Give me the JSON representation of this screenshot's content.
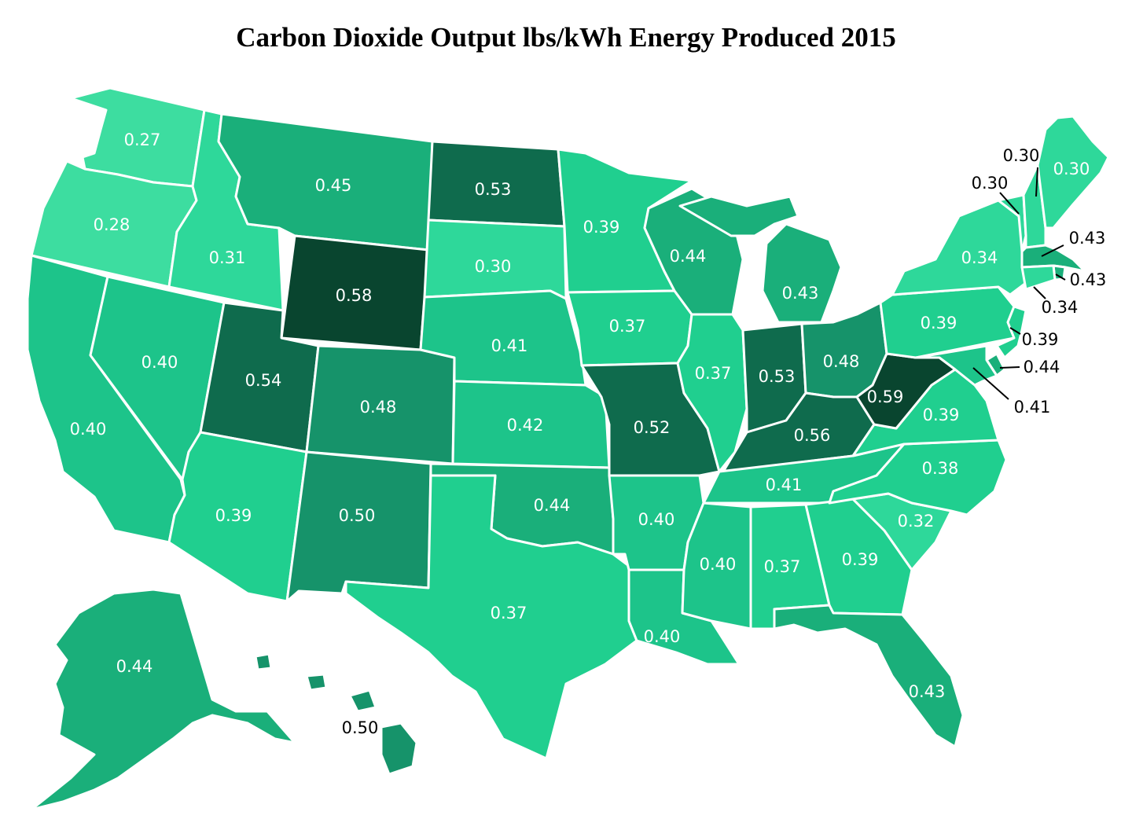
{
  "title": "Carbon Dioxide Output lbs/kWh Energy Produced 2015",
  "colors": {
    "shade_027": "#3ddda0",
    "shade_031": "#2ed89a",
    "shade_037": "#20cf8f",
    "shade_040": "#1dc48a",
    "shade_043": "#1aaf7a",
    "shade_048": "#16936a",
    "shade_053": "#0f6b4d",
    "shade_058": "#09452f",
    "label_light": "#ffffff",
    "label_outside": "#000000",
    "border": "#ffffff"
  },
  "states": [
    {
      "id": "WA",
      "value": "0.27"
    },
    {
      "id": "OR",
      "value": "0.28"
    },
    {
      "id": "CA",
      "value": "0.40"
    },
    {
      "id": "ID",
      "value": "0.31"
    },
    {
      "id": "NV",
      "value": "0.40"
    },
    {
      "id": "MT",
      "value": "0.45"
    },
    {
      "id": "WY",
      "value": "0.58"
    },
    {
      "id": "UT",
      "value": "0.54"
    },
    {
      "id": "AZ",
      "value": "0.39"
    },
    {
      "id": "CO",
      "value": "0.48"
    },
    {
      "id": "NM",
      "value": "0.50"
    },
    {
      "id": "ND",
      "value": "0.53"
    },
    {
      "id": "SD",
      "value": "0.30"
    },
    {
      "id": "NE",
      "value": "0.41"
    },
    {
      "id": "KS",
      "value": "0.42"
    },
    {
      "id": "OK",
      "value": "0.44"
    },
    {
      "id": "TX",
      "value": "0.37"
    },
    {
      "id": "MN",
      "value": "0.39"
    },
    {
      "id": "IA",
      "value": "0.37"
    },
    {
      "id": "MO",
      "value": "0.52"
    },
    {
      "id": "AR",
      "value": "0.40"
    },
    {
      "id": "LA",
      "value": "0.40"
    },
    {
      "id": "WI",
      "value": "0.44"
    },
    {
      "id": "IL",
      "value": "0.37"
    },
    {
      "id": "MI",
      "value": "0.43"
    },
    {
      "id": "IN",
      "value": "0.53"
    },
    {
      "id": "OH",
      "value": "0.48"
    },
    {
      "id": "KY",
      "value": "0.56"
    },
    {
      "id": "TN",
      "value": "0.41"
    },
    {
      "id": "MS",
      "value": "0.40"
    },
    {
      "id": "AL",
      "value": "0.37"
    },
    {
      "id": "GA",
      "value": "0.39"
    },
    {
      "id": "FL",
      "value": "0.43"
    },
    {
      "id": "SC",
      "value": "0.32"
    },
    {
      "id": "NC",
      "value": "0.38"
    },
    {
      "id": "VA",
      "value": "0.39"
    },
    {
      "id": "WV",
      "value": "0.59"
    },
    {
      "id": "PA",
      "value": "0.39"
    },
    {
      "id": "NY",
      "value": "0.34"
    },
    {
      "id": "ME",
      "value": "0.30"
    },
    {
      "id": "VT",
      "value": "0.30"
    },
    {
      "id": "NH",
      "value": "0.30"
    },
    {
      "id": "MA",
      "value": "0.43"
    },
    {
      "id": "RI",
      "value": "0.43"
    },
    {
      "id": "CT",
      "value": "0.34"
    },
    {
      "id": "NJ",
      "value": "0.39"
    },
    {
      "id": "DE",
      "value": "0.44"
    },
    {
      "id": "MD",
      "value": "0.41"
    },
    {
      "id": "AK",
      "value": "0.44"
    },
    {
      "id": "HI",
      "value": "0.50"
    }
  ]
}
